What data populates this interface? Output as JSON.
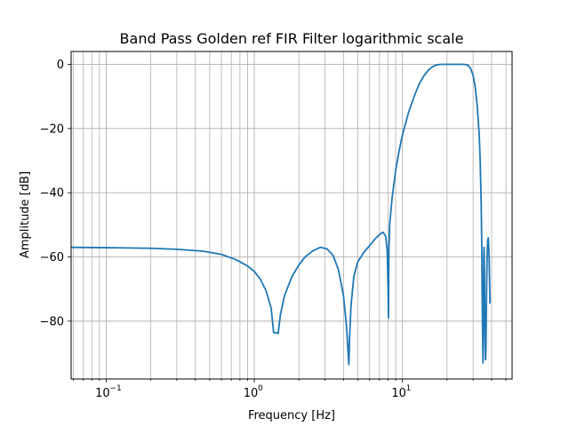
{
  "chart_data": {
    "type": "line",
    "title": "Band Pass Golden ref FIR Filter logarithmic scale",
    "xlabel": "Frequency [Hz]",
    "ylabel": "Amplitude [dB]",
    "xscale": "log",
    "xlim": [
      0.058,
      55
    ],
    "ylim": [
      -98,
      4
    ],
    "grid": "both-major-and-minor",
    "line_color": "#1f77b4",
    "x_ticks": [
      {
        "value": 0.1,
        "label": "10",
        "exp": "−1"
      },
      {
        "value": 1,
        "label": "10",
        "exp": "0"
      },
      {
        "value": 10,
        "label": "10",
        "exp": "1"
      }
    ],
    "y_ticks": [
      {
        "value": 0,
        "label": "0"
      },
      {
        "value": -20,
        "label": "−20"
      },
      {
        "value": -40,
        "label": "−40"
      },
      {
        "value": -60,
        "label": "−60"
      },
      {
        "value": -80,
        "label": "−80"
      }
    ],
    "series": [
      {
        "x": [
          0.058,
          0.1,
          0.2,
          0.3,
          0.45,
          0.6,
          0.75,
          0.9,
          1.0,
          1.1,
          1.2,
          1.3,
          1.35,
          1.45,
          1.5,
          1.6,
          1.8,
          2.0,
          2.2,
          2.5,
          2.8,
          3.1,
          3.4,
          3.7,
          4.0,
          4.2,
          4.3,
          4.35,
          4.4,
          4.5,
          4.7,
          5.0,
          5.5,
          6.0,
          6.5,
          7.0,
          7.4,
          7.7,
          7.9,
          8.0,
          8.05,
          8.1,
          8.2,
          8.5,
          9.0,
          9.5,
          10.0,
          11.0,
          12.0,
          13.0,
          14.0,
          15.0,
          16.0,
          17.0,
          18.0,
          20.0,
          22.0,
          24.0,
          26.0,
          27.0,
          28.0,
          29.0,
          30.0,
          31.0,
          32.0,
          33.0,
          33.5,
          34.0,
          34.3,
          34.5,
          34.8,
          35.0,
          35.2,
          35.4,
          35.6,
          35.8,
          36.0,
          36.2,
          36.4,
          36.6,
          36.8,
          37.0,
          37.3,
          37.6,
          38.0,
          38.5,
          39.0
        ],
        "y": [
          -57,
          -57.1,
          -57.3,
          -57.6,
          -58.2,
          -59.2,
          -60.8,
          -62.8,
          -64.5,
          -67,
          -70.5,
          -76,
          -83.5,
          -83.8,
          -78,
          -72,
          -66,
          -62.5,
          -60,
          -58,
          -57,
          -57.5,
          -59.5,
          -64,
          -72,
          -82,
          -90,
          -93.5,
          -85,
          -75,
          -66,
          -61.5,
          -58.5,
          -56.5,
          -54.5,
          -53,
          -52.3,
          -53.5,
          -58,
          -70,
          -79,
          -58,
          -50,
          -42,
          -33,
          -27,
          -22,
          -15,
          -10,
          -6,
          -3.5,
          -1.8,
          -0.7,
          -0.2,
          0,
          0,
          0,
          0,
          0,
          -0.1,
          -0.5,
          -1.5,
          -3.5,
          -7,
          -13,
          -22,
          -30,
          -43,
          -55,
          -70,
          -85,
          -93,
          -80,
          -60,
          -57,
          -65,
          -80,
          -88,
          -92,
          -89,
          -80,
          -70,
          -60,
          -55,
          -54,
          -60,
          -74.5
        ]
      }
    ]
  }
}
